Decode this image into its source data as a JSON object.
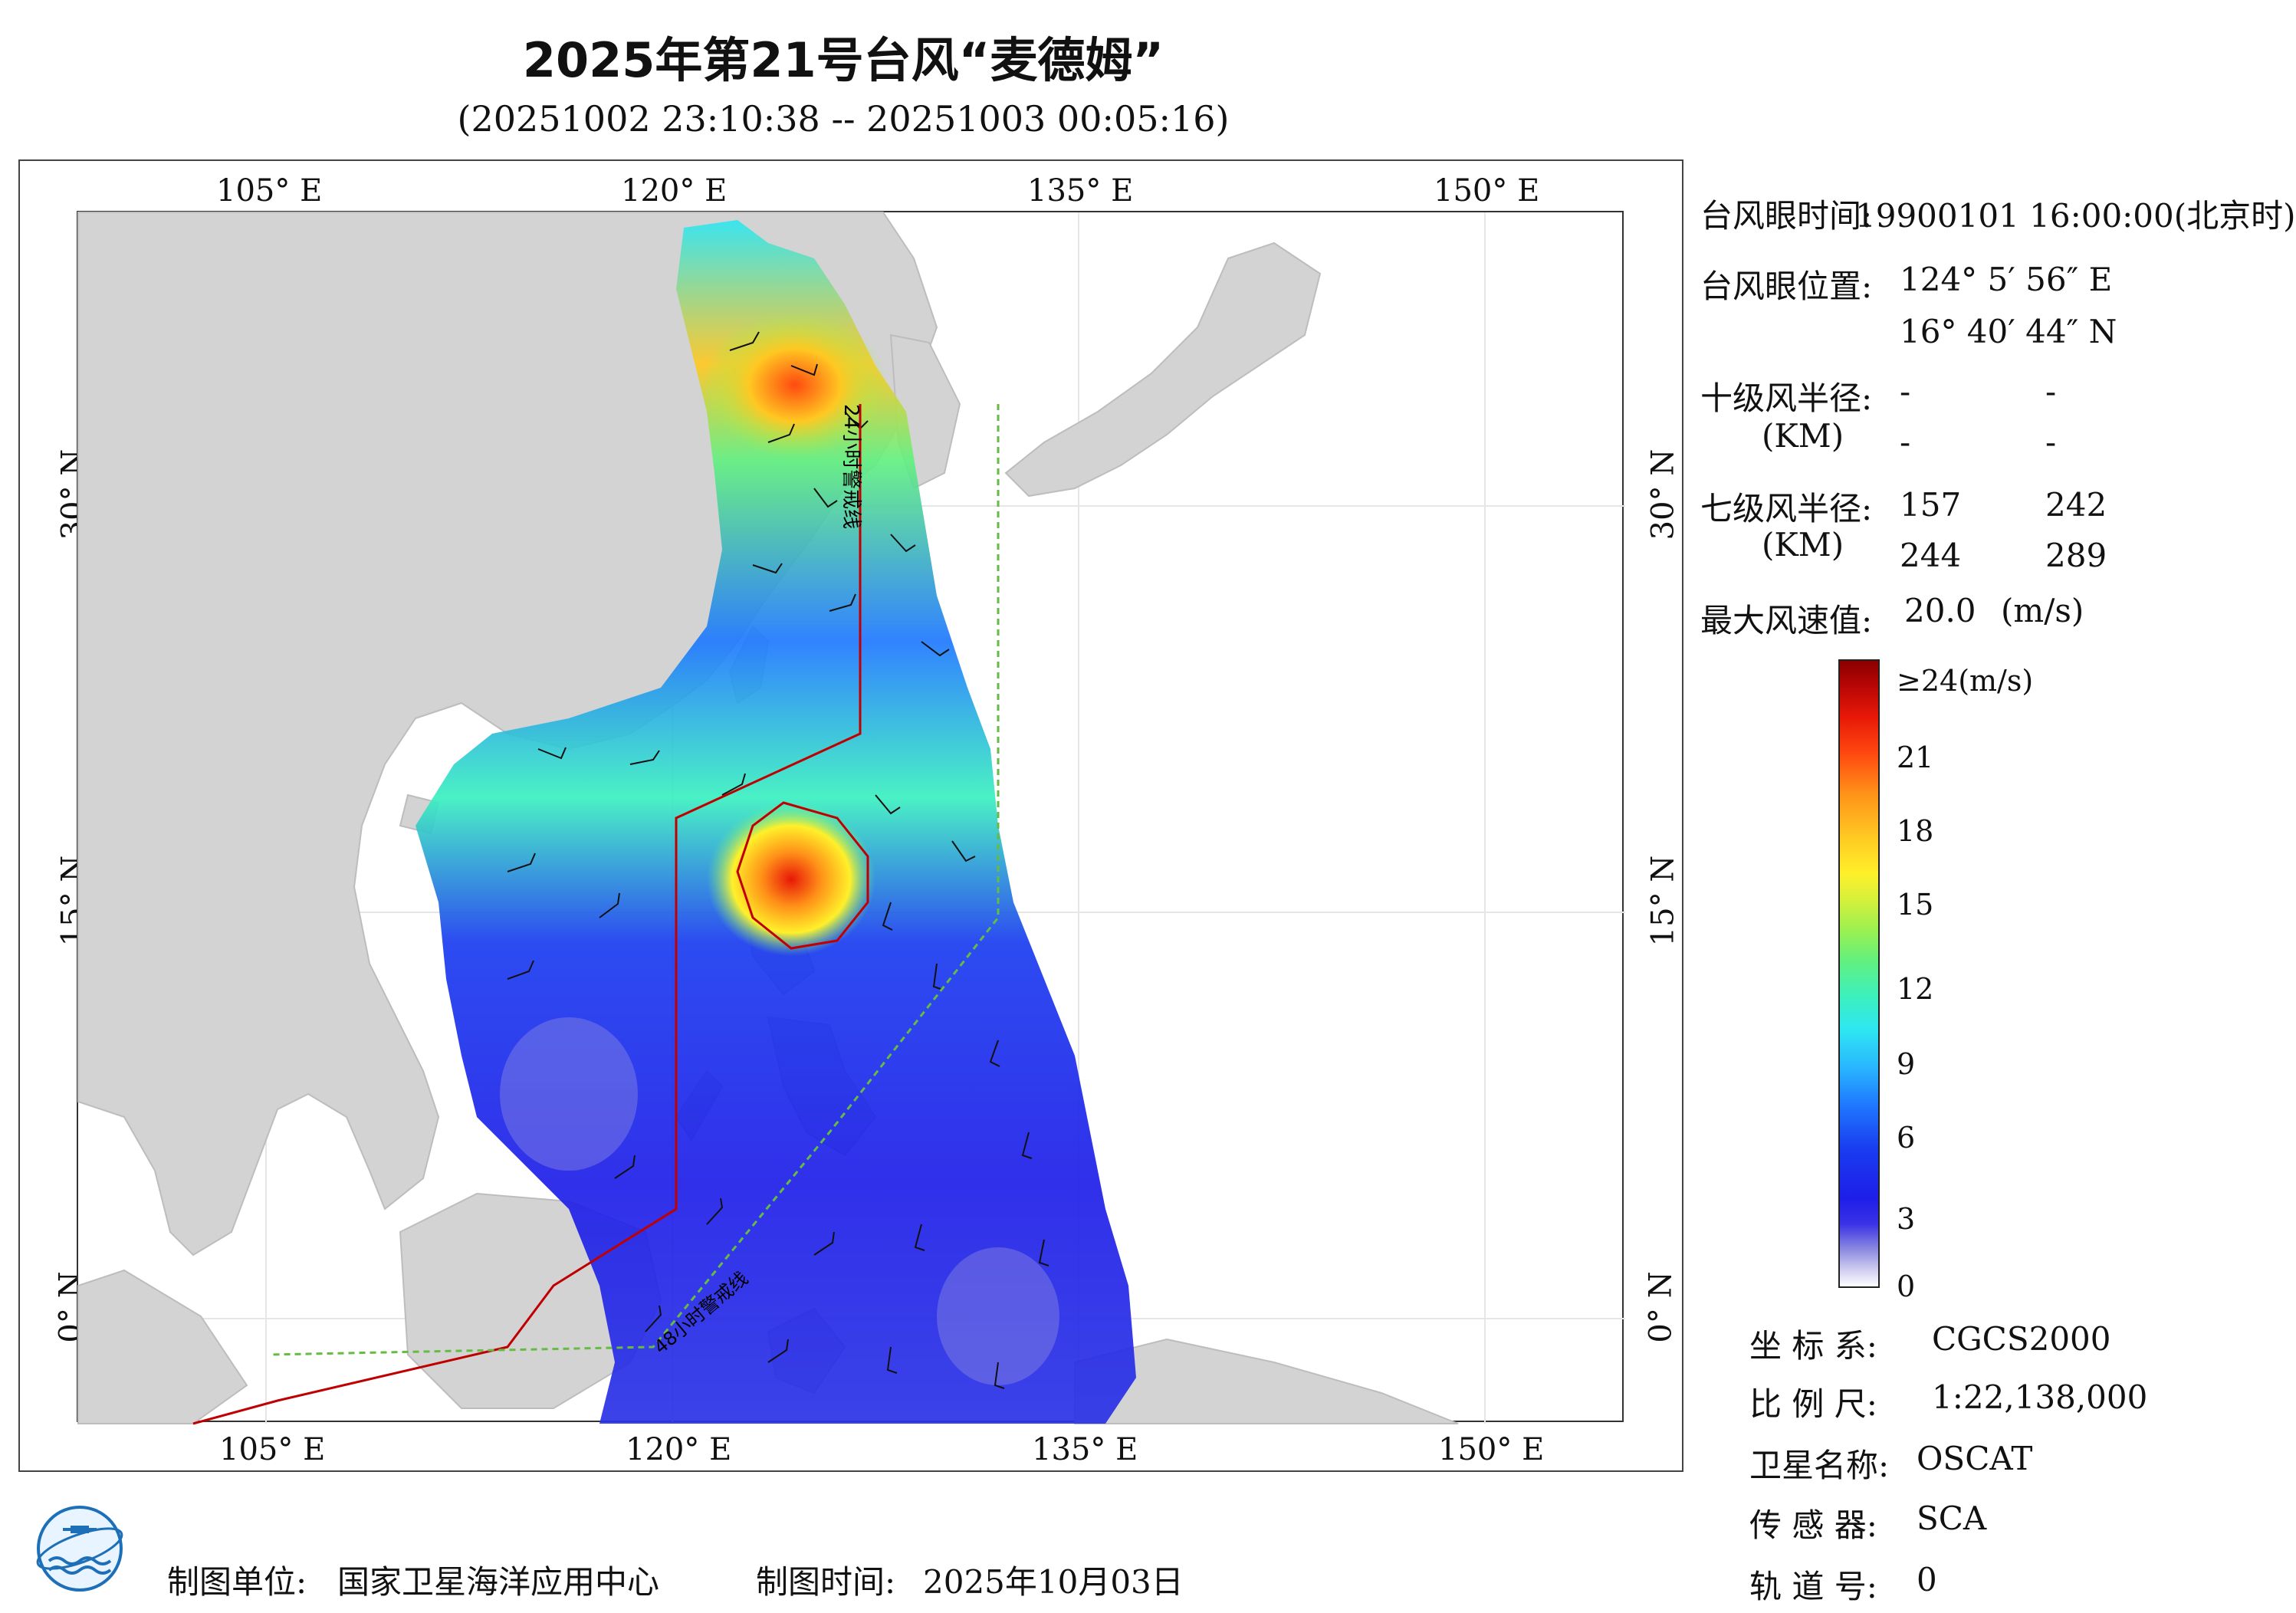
{
  "title": "2025年第21号台风“麦德姆”",
  "subtitle": "(20251002 23:10:38 -- 20251003 00:05:16)",
  "axes": {
    "top_lon": [
      "105° E",
      "120° E",
      "135° E",
      "150° E"
    ],
    "bottom_lon": [
      "105° E",
      "120° E",
      "135° E",
      "150° E"
    ],
    "left_lat": [
      "30° N",
      "15° N",
      "0° N"
    ],
    "right_lat": [
      "30° N",
      "15° N",
      "0° N"
    ]
  },
  "map": {
    "annotation_24h": "24小时警戒线",
    "annotation_48h": "48小时警戒线"
  },
  "info": {
    "eye_time_label": "台风眼时间:",
    "eye_time_value": "19900101 16:00:00(北京时)",
    "eye_pos_label": "台风眼位置:",
    "eye_lon": "124° 5′ 56″ E",
    "eye_lat": "16° 40′ 44″ N",
    "r10_label": "十级风半径:",
    "r10_unit": "(KM)",
    "r10_values": [
      "-",
      "-",
      "-",
      "-"
    ],
    "r7_label": "七级风半径:",
    "r7_unit": "(KM)",
    "r7_values": [
      "157",
      "242",
      "244",
      "289"
    ],
    "max_wind_label": "最大风速值:",
    "max_wind_value": "20.0",
    "max_wind_unit": "(m/s)"
  },
  "colorbar": {
    "ticks": [
      "≥24(m/s)",
      "21",
      "18",
      "15",
      "12",
      "9",
      "6",
      "3",
      "0"
    ],
    "min": 0,
    "max": 24
  },
  "meta": {
    "crs_label": "坐 标 系:",
    "crs_value": "CGCS2000",
    "scale_label": "比 例 尺:",
    "scale_value": "1:22,138,000",
    "satellite_label": "卫星名称:",
    "satellite_value": "OSCAT",
    "sensor_label": "传 感 器:",
    "sensor_value": "SCA",
    "orbit_label": "轨 道 号:",
    "orbit_value": "0"
  },
  "footer": {
    "maker_label": "制图单位:",
    "maker_value": "国家卫星海洋应用中心",
    "date_label": "制图时间:",
    "date_value": "2025年10月03日"
  },
  "colors": {
    "land": "#d3d3d3",
    "warning_line": "#c00000",
    "warning_48h": "#66bb44",
    "typhoon_core": "#ff3a10"
  }
}
